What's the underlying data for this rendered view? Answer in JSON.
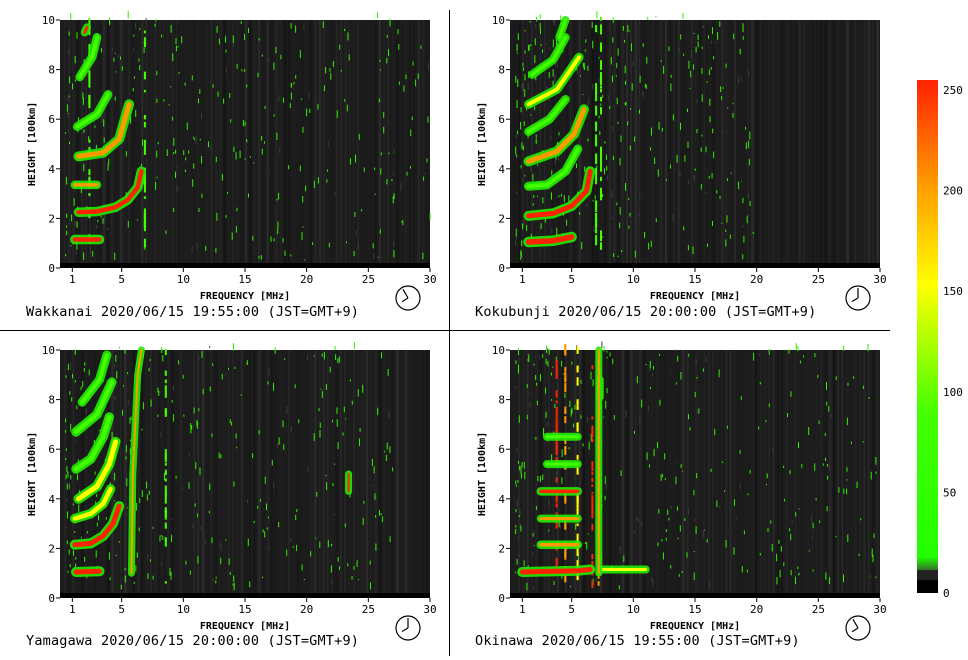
{
  "colorbar": {
    "ticks": [
      250,
      200,
      150,
      100,
      50,
      0
    ],
    "stops": [
      "#000000",
      "#3a3a3a",
      "#22ff00",
      "#44ff00",
      "#ffff00",
      "#ff9900",
      "#ff2200"
    ]
  },
  "axes": {
    "xlabel": "FREQUENCY [MHz]",
    "ylabel": "HEIGHT [100km]",
    "xticks": [
      "1",
      "5",
      "10",
      "15",
      "20",
      "25",
      "30"
    ],
    "yticks": [
      "0",
      "2",
      "4",
      "6",
      "8",
      "10"
    ],
    "xlim": [
      0,
      30
    ],
    "ylim": [
      0,
      10
    ]
  },
  "panels": [
    {
      "station": "Wakkanai",
      "caption": "Wakkanai 2020/06/15 19:55:00 (JST=GMT+9)",
      "clock": "19:55"
    },
    {
      "station": "Kokubunji",
      "caption": "Kokubunji 2020/06/15 20:00:00 (JST=GMT+9)",
      "clock": "20:00"
    },
    {
      "station": "Yamagawa",
      "caption": "Yamagawa 2020/06/15 20:00:00 (JST=GMT+9)",
      "clock": "20:00"
    },
    {
      "station": "Okinawa",
      "caption": "Okinawa 2020/06/15 19:55:00 (JST=GMT+9)",
      "clock": "19:55"
    }
  ],
  "chart_data": [
    {
      "type": "heatmap",
      "station": "Wakkanai",
      "xlabel": "FREQUENCY [MHz]",
      "ylabel": "HEIGHT [100km]",
      "xlim": [
        0,
        30
      ],
      "ylim": [
        0,
        10
      ],
      "noise_max_freq": 30,
      "traces": [
        {
          "points": [
            [
              1.2,
              1.15
            ],
            [
              3.2,
              1.15
            ]
          ],
          "v": 240,
          "w": 0.18
        },
        {
          "points": [
            [
              1.5,
              2.25
            ],
            [
              3.0,
              2.28
            ],
            [
              4.5,
              2.45
            ],
            [
              5.5,
              2.75
            ],
            [
              6.3,
              3.25
            ],
            [
              6.6,
              3.9
            ]
          ],
          "v": 240,
          "w": 0.18
        },
        {
          "points": [
            [
              1.2,
              3.35
            ],
            [
              3.0,
              3.35
            ]
          ],
          "v": 200,
          "w": 0.14
        },
        {
          "points": [
            [
              1.5,
              4.5
            ],
            [
              3.5,
              4.65
            ],
            [
              4.8,
              5.2
            ],
            [
              5.6,
              6.6
            ]
          ],
          "v": 200,
          "w": 0.2
        },
        {
          "points": [
            [
              1.4,
              5.7
            ],
            [
              3.0,
              6.2
            ],
            [
              3.9,
              7.0
            ]
          ],
          "v": 120,
          "w": 0.15
        },
        {
          "points": [
            [
              1.6,
              7.7
            ],
            [
              2.6,
              8.5
            ],
            [
              3.0,
              9.3
            ]
          ],
          "v": 110,
          "w": 0.15
        },
        {
          "points": [
            [
              2.0,
              9.5
            ],
            [
              2.2,
              9.7
            ]
          ],
          "v": 230,
          "w": 0.12
        }
      ],
      "columns": [
        [
          6.8,
          110
        ],
        [
          2.3,
          90
        ]
      ]
    },
    {
      "type": "heatmap",
      "station": "Kokubunji",
      "xlabel": "FREQUENCY [MHz]",
      "ylabel": "HEIGHT [100km]",
      "xlim": [
        0,
        30
      ],
      "ylim": [
        0,
        10
      ],
      "noise_max_freq": 20,
      "traces": [
        {
          "points": [
            [
              1.5,
              1.05
            ],
            [
              3.5,
              1.1
            ],
            [
              5.0,
              1.25
            ]
          ],
          "v": 220,
          "w": 0.22
        },
        {
          "points": [
            [
              1.5,
              2.1
            ],
            [
              3.5,
              2.2
            ],
            [
              5.0,
              2.5
            ],
            [
              6.2,
              3.1
            ],
            [
              6.5,
              3.9
            ]
          ],
          "v": 230,
          "w": 0.2
        },
        {
          "points": [
            [
              1.5,
              3.3
            ],
            [
              3.0,
              3.35
            ],
            [
              4.5,
              3.9
            ],
            [
              5.5,
              4.8
            ]
          ],
          "v": 120,
          "w": 0.16
        },
        {
          "points": [
            [
              1.5,
              4.3
            ],
            [
              3.8,
              4.7
            ],
            [
              5.2,
              5.4
            ],
            [
              6.0,
              6.4
            ]
          ],
          "v": 200,
          "w": 0.2
        },
        {
          "points": [
            [
              1.5,
              5.5
            ],
            [
              3.2,
              6.0
            ],
            [
              4.5,
              6.8
            ]
          ],
          "v": 110,
          "w": 0.15
        },
        {
          "points": [
            [
              1.5,
              6.6
            ],
            [
              3.8,
              7.2
            ],
            [
              5.6,
              8.5
            ]
          ],
          "v": 140,
          "w": 0.16
        },
        {
          "points": [
            [
              1.8,
              7.8
            ],
            [
              3.5,
              8.4
            ],
            [
              4.5,
              9.3
            ]
          ],
          "v": 110,
          "w": 0.14
        },
        {
          "points": [
            [
              4.0,
              9.3
            ],
            [
              4.5,
              10.0
            ]
          ],
          "v": 110,
          "w": 0.12
        }
      ],
      "columns": [
        [
          6.9,
          110
        ],
        [
          7.3,
          100
        ]
      ]
    },
    {
      "type": "heatmap",
      "station": "Yamagawa",
      "xlabel": "FREQUENCY [MHz]",
      "ylabel": "HEIGHT [100km]",
      "xlim": [
        0,
        30
      ],
      "ylim": [
        0,
        10
      ],
      "noise_max_freq": 27,
      "traces": [
        {
          "points": [
            [
              1.3,
              1.05
            ],
            [
              3.2,
              1.08
            ]
          ],
          "v": 230,
          "w": 0.2
        },
        {
          "points": [
            [
              1.2,
              2.15
            ],
            [
              2.5,
              2.2
            ],
            [
              3.5,
              2.5
            ],
            [
              4.3,
              3.0
            ],
            [
              4.8,
              3.7
            ]
          ],
          "v": 210,
          "w": 0.2
        },
        {
          "points": [
            [
              1.2,
              3.2
            ],
            [
              2.5,
              3.4
            ],
            [
              3.5,
              3.8
            ],
            [
              4.1,
              4.4
            ]
          ],
          "v": 140,
          "w": 0.18
        },
        {
          "points": [
            [
              1.5,
              4.0
            ],
            [
              3.0,
              4.5
            ],
            [
              4.0,
              5.4
            ],
            [
              4.5,
              6.3
            ]
          ],
          "v": 150,
          "w": 0.2
        },
        {
          "points": [
            [
              1.3,
              5.2
            ],
            [
              2.5,
              5.6
            ],
            [
              3.5,
              6.5
            ],
            [
              4.0,
              7.3
            ]
          ],
          "v": 110,
          "w": 0.18
        },
        {
          "points": [
            [
              1.3,
              6.7
            ],
            [
              3.0,
              7.4
            ],
            [
              4.2,
              8.7
            ]
          ],
          "v": 110,
          "w": 0.18
        },
        {
          "points": [
            [
              1.8,
              7.9
            ],
            [
              3.2,
              8.8
            ],
            [
              3.8,
              9.8
            ]
          ],
          "v": 100,
          "w": 0.16
        },
        {
          "points": [
            [
              5.8,
              1.0
            ],
            [
              5.9,
              5.0
            ],
            [
              6.3,
              9.0
            ],
            [
              6.6,
              10.0
            ]
          ],
          "v": 190,
          "w": 0.08
        },
        {
          "points": [
            [
              23.4,
              4.3
            ],
            [
              23.4,
              5.0
            ]
          ],
          "v": 250,
          "w": 0.08
        }
      ],
      "columns": [
        [
          8.5,
          110
        ]
      ]
    },
    {
      "type": "heatmap",
      "station": "Okinawa",
      "xlabel": "FREQUENCY [MHz]",
      "ylabel": "HEIGHT [100km]",
      "xlim": [
        0,
        30
      ],
      "ylim": [
        0,
        10
      ],
      "noise_max_freq": 30,
      "traces": [
        {
          "points": [
            [
              1.0,
              1.05
            ],
            [
              5.5,
              1.1
            ],
            [
              6.5,
              1.15
            ]
          ],
          "v": 240,
          "w": 0.2
        },
        {
          "points": [
            [
              7.5,
              1.15
            ],
            [
              11.0,
              1.15
            ]
          ],
          "v": 140,
          "w": 0.12
        },
        {
          "points": [
            [
              2.5,
              2.15
            ],
            [
              5.5,
              2.15
            ]
          ],
          "v": 200,
          "w": 0.14
        },
        {
          "points": [
            [
              2.5,
              3.2
            ],
            [
              5.5,
              3.2
            ]
          ],
          "v": 190,
          "w": 0.12
        },
        {
          "points": [
            [
              2.5,
              4.3
            ],
            [
              5.5,
              4.3
            ]
          ],
          "v": 210,
          "w": 0.14
        },
        {
          "points": [
            [
              3.0,
              5.4
            ],
            [
              5.5,
              5.4
            ]
          ],
          "v": 110,
          "w": 0.12
        },
        {
          "points": [
            [
              3.0,
              6.5
            ],
            [
              5.5,
              6.5
            ]
          ],
          "v": 100,
          "w": 0.12
        },
        {
          "points": [
            [
              7.3,
              8.1
            ],
            [
              7.3,
              8.8
            ]
          ],
          "v": 240,
          "w": 0.1
        },
        {
          "points": [
            [
              7.2,
              1.0
            ],
            [
              7.2,
              10.0
            ]
          ],
          "v": 200,
          "w": 0.06
        }
      ],
      "columns": [
        [
          3.7,
          210
        ],
        [
          4.4,
          190
        ],
        [
          5.4,
          130
        ],
        [
          6.6,
          220
        ],
        [
          7.1,
          200
        ]
      ]
    }
  ]
}
